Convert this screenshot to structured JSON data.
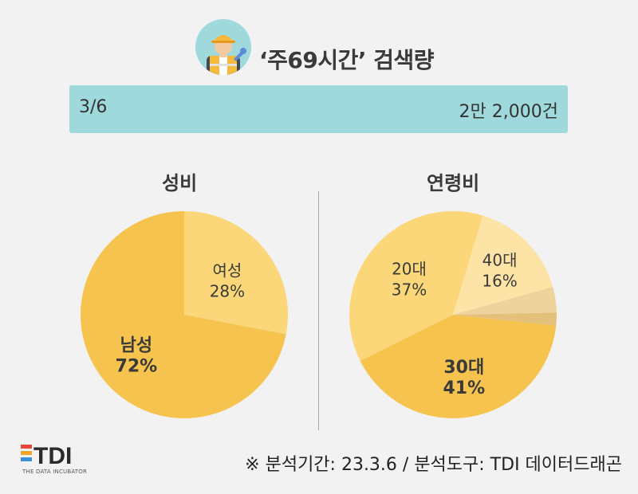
{
  "header": {
    "title": "‘주69시간’ 검색량",
    "icon": "construction-worker-icon"
  },
  "summary_bar": {
    "date": "3/6",
    "amount": "2만 2,000건",
    "color": "#9fd9dc"
  },
  "chart_data": [
    {
      "type": "pie",
      "title": "성비",
      "slices": [
        {
          "label": "여성",
          "value": 28,
          "display": "28%",
          "color": "#fbd77a"
        },
        {
          "label": "남성",
          "value": 72,
          "display": "72%",
          "color": "#f6c44e"
        }
      ]
    },
    {
      "type": "pie",
      "title": "연령비",
      "slices": [
        {
          "label": "30대",
          "value": 41,
          "display": "41%",
          "color": "#f6c44e"
        },
        {
          "label": "20대",
          "value": 37,
          "display": "37%",
          "color": "#fbd77a"
        },
        {
          "label": "40대",
          "value": 16,
          "display": "16%",
          "color": "#fde4a6"
        },
        {
          "label": "",
          "value": 4,
          "display": "",
          "color": "#efd39d"
        },
        {
          "label": "",
          "value": 2,
          "display": "",
          "color": "#e3c17a"
        }
      ]
    }
  ],
  "logo": {
    "text": "TDI",
    "subtitle": "THE DATA INCUBATOR",
    "colors": [
      "#e8473d",
      "#f2a52b",
      "#3a8fd6"
    ]
  },
  "footnote": "※ 분석기간: 23.3.6 / 분석도구: TDI 데이터드래곤"
}
